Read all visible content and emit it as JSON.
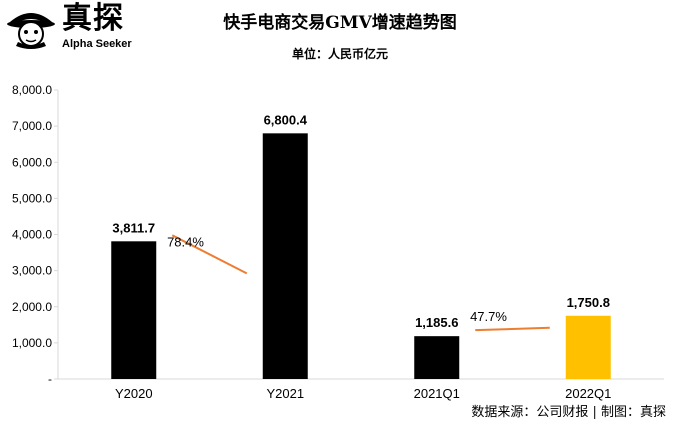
{
  "brand": {
    "name": "真探",
    "sub": "Alpha Seeker"
  },
  "title": "快手电商交易GMV增速趋势图",
  "subtitle": "单位：人民币亿元",
  "source": "数据来源：公司财报 | 制图：真探",
  "colors": {
    "bar": "#000000",
    "highlight": "#FFC000",
    "growth_line": "#ED7D31",
    "axis": "#D9D9D9"
  },
  "chart_data": {
    "type": "bar",
    "categories": [
      "Y2020",
      "Y2021",
      "2021Q1",
      "2022Q1"
    ],
    "values": [
      3811.7,
      6800.4,
      1185.6,
      1750.8
    ],
    "value_labels": [
      "3,811.7",
      "6,800.4",
      "1,185.6",
      "1,750.8"
    ],
    "highlight_index": 3,
    "ylim": [
      0,
      8000
    ],
    "yticks": [
      0,
      1000,
      2000,
      3000,
      4000,
      5000,
      6000,
      7000,
      8000
    ],
    "ytick_labels": [
      "-",
      "1,000.0",
      "2,000.0",
      "3,000.0",
      "4,000.0",
      "5,000.0",
      "6,000.0",
      "7,000.0",
      "8,000.0"
    ],
    "grid": false,
    "xlabel": "",
    "ylabel": "",
    "annotations": [
      {
        "text": "78.4%",
        "from": 0,
        "to": 1
      },
      {
        "text": "47.7%",
        "from": 2,
        "to": 3
      }
    ]
  }
}
